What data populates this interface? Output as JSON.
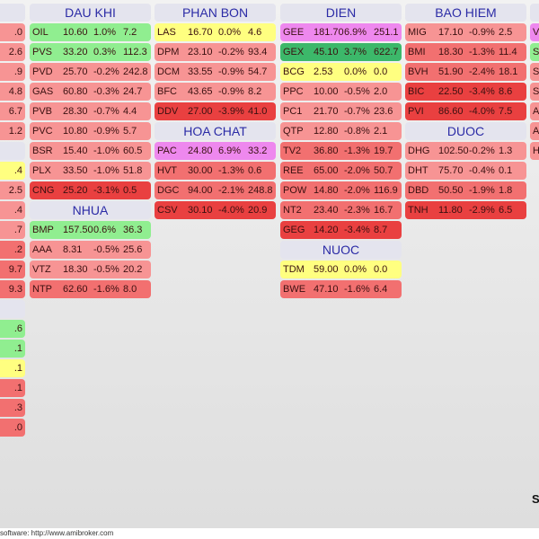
{
  "colors": {
    "ceiling": "#ee88ee",
    "up_strong": "#3cb86a",
    "up": "#90ee90",
    "flat": "#ffff80",
    "down": "#f79494",
    "down2": "#f27070",
    "down3": "#e94040",
    "header_bg": "#e4e4ee",
    "header_text": "#2b2ba6"
  },
  "left_partial": {
    "groups": [
      {
        "rows": [
          {
            "t": ".0",
            "k": "down"
          },
          {
            "t": "2.6",
            "k": "down"
          },
          {
            "t": ".9",
            "k": "down"
          },
          {
            "t": "4.8",
            "k": "down"
          },
          {
            "t": "6.7",
            "k": "down"
          },
          {
            "t": "1.2",
            "k": "down"
          }
        ]
      },
      {
        "rows": [
          {
            "t": ".4",
            "k": "flat"
          },
          {
            "t": "2.5",
            "k": "down"
          },
          {
            "t": ".4",
            "k": "down"
          },
          {
            "t": ".7",
            "k": "down"
          },
          {
            "t": ".2",
            "k": "down2"
          },
          {
            "t": "9.7",
            "k": "down2"
          },
          {
            "t": "9.3",
            "k": "down2"
          }
        ]
      },
      {
        "rows": [
          {
            "t": ".6",
            "k": "up"
          },
          {
            "t": ".1",
            "k": "up"
          },
          {
            "t": ".1",
            "k": "flat"
          },
          {
            "t": ".1",
            "k": "down2"
          },
          {
            "t": ".3",
            "k": "down2"
          },
          {
            "t": ".0",
            "k": "down2"
          }
        ]
      }
    ]
  },
  "columns": [
    {
      "groups": [
        {
          "title": "DAU KHI",
          "rows": [
            [
              "OIL",
              "10.60",
              "1.0%",
              "7.2"
            ],
            [
              "PVS",
              "33.20",
              "0.3%",
              "112.3"
            ],
            [
              "PVD",
              "25.70",
              "-0.2%",
              "242.8"
            ],
            [
              "GAS",
              "60.80",
              "-0.3%",
              "24.7"
            ],
            [
              "PVB",
              "28.30",
              "-0.7%",
              "4.4"
            ],
            [
              "PVC",
              "10.80",
              "-0.9%",
              "5.7"
            ],
            [
              "BSR",
              "15.40",
              "-1.0%",
              "60.5"
            ],
            [
              "PLX",
              "33.50",
              "-1.0%",
              "51.8"
            ],
            [
              "CNG",
              "25.20",
              "-3.1%",
              "0.5"
            ]
          ]
        },
        {
          "title": "NHUA",
          "rows": [
            [
              "BMP",
              "157.50",
              "0.6%",
              "36.3"
            ],
            [
              "AAA",
              "8.31",
              "-0.5%",
              "25.6"
            ],
            [
              "VTZ",
              "18.30",
              "-0.5%",
              "20.2"
            ],
            [
              "NTP",
              "62.60",
              "-1.6%",
              "8.0"
            ]
          ]
        }
      ]
    },
    {
      "groups": [
        {
          "title": "PHAN BON",
          "rows": [
            [
              "LAS",
              "16.70",
              "0.0%",
              "4.6"
            ],
            [
              "DPM",
              "23.10",
              "-0.2%",
              "93.4"
            ],
            [
              "DCM",
              "33.55",
              "-0.9%",
              "54.7"
            ],
            [
              "BFC",
              "43.65",
              "-0.9%",
              "8.2"
            ],
            [
              "DDV",
              "27.00",
              "-3.9%",
              "41.0"
            ]
          ]
        },
        {
          "title": "HOA CHAT",
          "rows": [
            [
              "PAC",
              "24.80",
              "6.9%",
              "33.2"
            ],
            [
              "HVT",
              "30.00",
              "-1.3%",
              "0.6"
            ],
            [
              "DGC",
              "94.00",
              "-2.1%",
              "248.8"
            ],
            [
              "CSV",
              "30.10",
              "-4.0%",
              "20.9"
            ]
          ]
        }
      ]
    },
    {
      "groups": [
        {
          "title": "DIEN",
          "rows": [
            [
              "GEE",
              "181.70",
              "6.9%",
              "251.1"
            ],
            [
              "GEX",
              "45.10",
              "3.7%",
              "622.7"
            ],
            [
              "BCG",
              "2.53",
              "0.0%",
              "0.0"
            ],
            [
              "PPC",
              "10.00",
              "-0.5%",
              "2.0"
            ],
            [
              "PC1",
              "21.70",
              "-0.7%",
              "23.6"
            ],
            [
              "QTP",
              "12.80",
              "-0.8%",
              "2.1"
            ],
            [
              "TV2",
              "36.80",
              "-1.3%",
              "19.7"
            ],
            [
              "REE",
              "65.00",
              "-2.0%",
              "50.7"
            ],
            [
              "POW",
              "14.80",
              "-2.0%",
              "116.9"
            ],
            [
              "NT2",
              "23.40",
              "-2.3%",
              "16.7"
            ],
            [
              "GEG",
              "14.20",
              "-3.4%",
              "8.7"
            ]
          ]
        },
        {
          "title": "NUOC",
          "rows": [
            [
              "TDM",
              "59.00",
              "0.0%",
              "0.0"
            ],
            [
              "BWE",
              "47.10",
              "-1.6%",
              "6.4"
            ]
          ]
        }
      ]
    },
    {
      "groups": [
        {
          "title": "BAO HIEM",
          "rows": [
            [
              "MIG",
              "17.10",
              "-0.9%",
              "2.5"
            ],
            [
              "BMI",
              "18.30",
              "-1.3%",
              "11.4"
            ],
            [
              "BVH",
              "51.90",
              "-2.4%",
              "18.1"
            ],
            [
              "BIC",
              "22.50",
              "-3.4%",
              "8.6"
            ],
            [
              "PVI",
              "86.60",
              "-4.0%",
              "7.5"
            ]
          ]
        },
        {
          "title": "DUOC",
          "rows": [
            [
              "DHG",
              "102.50",
              "-0.2%",
              "1.3"
            ],
            [
              "DHT",
              "75.70",
              "-0.4%",
              "0.1"
            ],
            [
              "DBD",
              "50.50",
              "-1.9%",
              "1.8"
            ],
            [
              "TNH",
              "11.80",
              "-2.9%",
              "6.5"
            ]
          ]
        }
      ]
    }
  ],
  "right_partial": {
    "rows": [
      {
        "t": "V.",
        "k": "ceiling"
      },
      {
        "t": "S.",
        "k": "up"
      },
      {
        "t": "S",
        "k": "down"
      },
      {
        "t": "S",
        "k": "down"
      },
      {
        "t": "A",
        "k": "down"
      },
      {
        "t": "A",
        "k": "down"
      },
      {
        "t": "H",
        "k": "down"
      }
    ]
  },
  "corner_label": "S",
  "footer": "software: http://www.amibroker.com"
}
